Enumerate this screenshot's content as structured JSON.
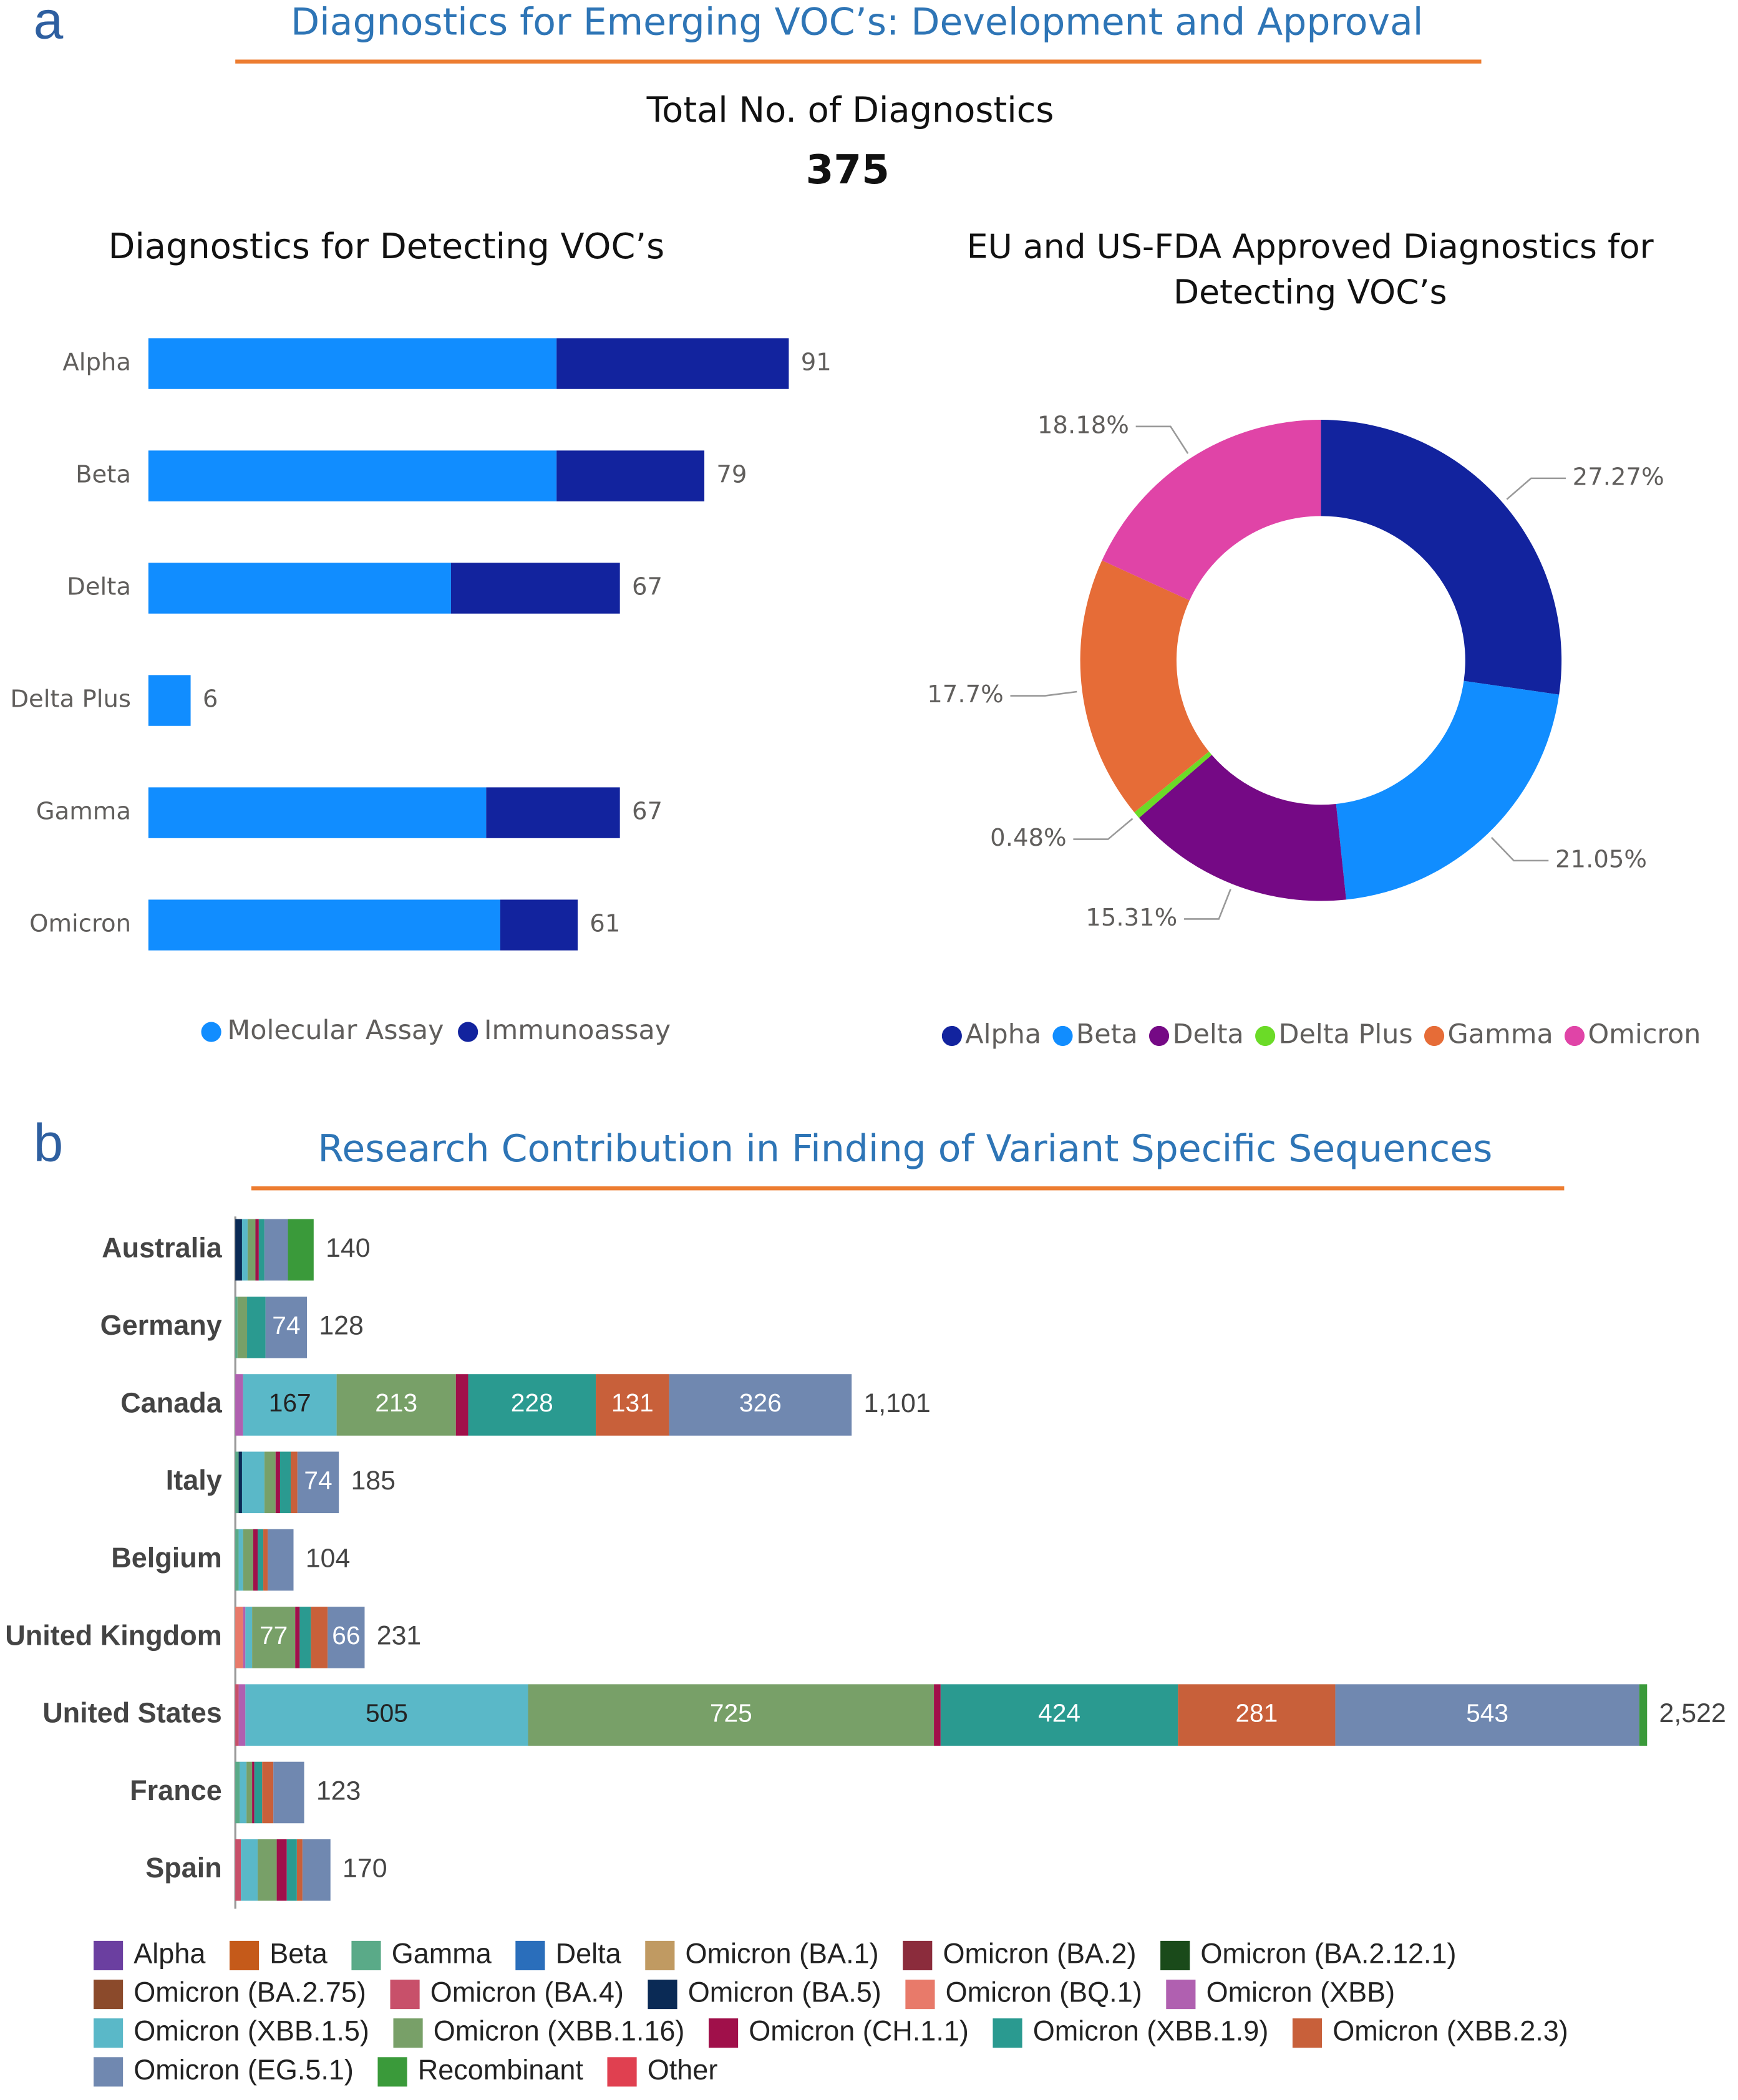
{
  "panel_labels": [
    "a",
    "b"
  ],
  "header": {
    "title": "Diagnostics for Emerging VOC’s: Development and Approval",
    "total_label": "Total No. of Diagnostics",
    "total_value": 375
  },
  "chart_data": [
    {
      "type": "bar",
      "orientation": "horizontal",
      "stacked": true,
      "title": "Diagnostics for Detecting VOC’s",
      "categories": [
        "Alpha",
        "Beta",
        "Delta",
        "Delta Plus",
        "Gamma",
        "Omicron"
      ],
      "series": [
        {
          "name": "Molecular Assay",
          "color": "#118dff",
          "values": [
            58,
            58,
            43,
            6,
            48,
            50
          ]
        },
        {
          "name": "Immunoassay",
          "color": "#12239e",
          "values": [
            33,
            21,
            24,
            0,
            19,
            11
          ]
        }
      ],
      "totals": [
        91,
        79,
        67,
        6,
        67,
        61
      ],
      "legend": "bottom"
    },
    {
      "type": "donut",
      "title": "EU and US-FDA Approved Diagnostics for Detecting VOC’s",
      "categories": [
        "Alpha",
        "Beta",
        "Delta",
        "Delta Plus",
        "Gamma",
        "Omicron"
      ],
      "colors": [
        "#12239e",
        "#118dff",
        "#750985",
        "#6bdb27",
        "#e66c37",
        "#e044a7"
      ],
      "values": [
        27.27,
        21.05,
        15.31,
        0.48,
        17.7,
        18.18
      ],
      "value_labels": [
        "27.27%",
        "21.05%",
        "15.31%",
        "0.48%",
        "17.7%",
        "18.18%"
      ],
      "legend": "bottom"
    },
    {
      "type": "bar",
      "orientation": "horizontal",
      "stacked": true,
      "title": "Research Contribution in Finding of Variant Specific Sequences",
      "categories": [
        "Australia",
        "Germany",
        "Canada",
        "Italy",
        "Belgium",
        "United Kingdom",
        "United States",
        "France",
        "Spain"
      ],
      "series": [
        {
          "name": "Alpha",
          "color": "#6b3fa0",
          "values": [
            0,
            0,
            0,
            0,
            0,
            0,
            0,
            0,
            0
          ]
        },
        {
          "name": "Beta",
          "color": "#c55a1a",
          "values": [
            0,
            0,
            0,
            0,
            0,
            0,
            0,
            0,
            0
          ]
        },
        {
          "name": "Gamma",
          "color": "#5aaa88",
          "values": [
            0,
            4,
            0,
            6,
            6,
            0,
            0,
            8,
            0
          ]
        },
        {
          "name": "Delta",
          "color": "#2a6ebb",
          "values": [
            0,
            0,
            0,
            0,
            0,
            0,
            0,
            0,
            0
          ]
        },
        {
          "name": "Omicron (BA.1)",
          "color": "#c09a62",
          "values": [
            0,
            0,
            0,
            0,
            0,
            0,
            0,
            0,
            0
          ]
        },
        {
          "name": "Omicron (BA.2)",
          "color": "#8b2c3c",
          "values": [
            0,
            0,
            0,
            0,
            0,
            0,
            0,
            0,
            0
          ]
        },
        {
          "name": "Omicron (BA.2.12.1)",
          "color": "#1a4a1a",
          "values": [
            0,
            0,
            0,
            0,
            0,
            0,
            0,
            0,
            0
          ]
        },
        {
          "name": "Omicron (BA.2.75)",
          "color": "#8b4a2b",
          "values": [
            0,
            0,
            0,
            0,
            0,
            0,
            0,
            0,
            0
          ]
        },
        {
          "name": "Omicron (BA.4)",
          "color": "#c8506a",
          "values": [
            0,
            0,
            0,
            0,
            0,
            0,
            6,
            0,
            10
          ]
        },
        {
          "name": "Omicron (BA.5)",
          "color": "#0a2a55",
          "values": [
            12,
            0,
            0,
            6,
            0,
            0,
            0,
            0,
            0
          ]
        },
        {
          "name": "Omicron (BQ.1)",
          "color": "#e87a6a",
          "values": [
            0,
            0,
            0,
            0,
            0,
            14,
            0,
            0,
            0
          ]
        },
        {
          "name": "Omicron (XBB)",
          "color": "#b060b0",
          "values": [
            0,
            0,
            14,
            0,
            0,
            4,
            12,
            0,
            0
          ]
        },
        {
          "name": "Omicron (XBB.1.5)",
          "color": "#5ab8c8",
          "values": [
            10,
            0,
            167,
            40,
            8,
            12,
            505,
            12,
            30
          ]
        },
        {
          "name": "Omicron (XBB.1.16)",
          "color": "#78a068",
          "values": [
            14,
            17,
            213,
            20,
            18,
            77,
            725,
            10,
            34
          ]
        },
        {
          "name": "Omicron (CH.1.1)",
          "color": "#a0104a",
          "values": [
            6,
            0,
            22,
            8,
            8,
            8,
            12,
            4,
            18
          ]
        },
        {
          "name": "Omicron (XBB.1.9)",
          "color": "#2a9a90",
          "values": [
            10,
            33,
            228,
            19,
            10,
            20,
            424,
            14,
            18
          ]
        },
        {
          "name": "Omicron (XBB.2.3)",
          "color": "#c8603a",
          "values": [
            0,
            0,
            131,
            12,
            8,
            30,
            281,
            20,
            10
          ]
        },
        {
          "name": "Omicron (EG.5.1)",
          "color": "#7088b0",
          "values": [
            42,
            74,
            326,
            74,
            46,
            66,
            543,
            55,
            50
          ]
        },
        {
          "name": "Recombinant",
          "color": "#3a9a3a",
          "values": [
            46,
            0,
            0,
            0,
            0,
            0,
            14,
            0,
            0
          ]
        },
        {
          "name": "Other",
          "color": "#e04050",
          "values": [
            0,
            0,
            0,
            0,
            0,
            0,
            0,
            0,
            0
          ]
        }
      ],
      "totals": [
        140,
        128,
        {
          "value": 1101,
          "label": "1,101"
        },
        185,
        104,
        231,
        {
          "value": 2522,
          "label": "2,522"
        },
        123,
        170
      ],
      "legend": "bottom"
    }
  ]
}
